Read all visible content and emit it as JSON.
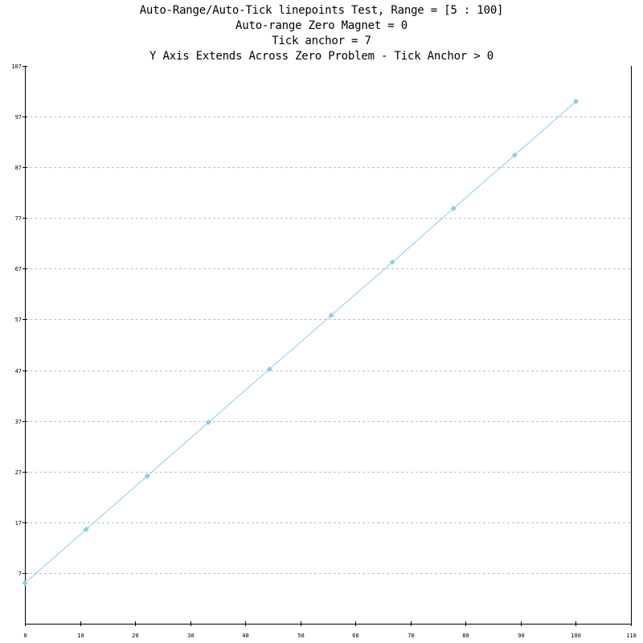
{
  "title_lines": [
    "Auto-Range/Auto-Tick linepoints Test, Range = [5 : 100]",
    "Auto-range Zero Magnet = 0",
    "Tick anchor = 7",
    "Y Axis Extends Across Zero Problem - Tick Anchor > 0"
  ],
  "chart_data": {
    "type": "line",
    "markers": "diamond",
    "color": "#87ceeb",
    "grid": "y-dashed",
    "x": [
      0,
      11.1,
      22.2,
      33.3,
      44.4,
      55.6,
      66.7,
      77.8,
      88.9,
      100
    ],
    "values": [
      5,
      15.6,
      26.1,
      36.7,
      47.2,
      57.8,
      68.3,
      78.9,
      89.4,
      100
    ],
    "xlim": [
      0,
      110
    ],
    "ylim": [
      -3,
      107
    ],
    "x_ticks": [
      0,
      10,
      20,
      30,
      40,
      50,
      60,
      70,
      80,
      90,
      100,
      110
    ],
    "y_ticks": [
      7,
      17,
      27,
      37,
      47,
      57,
      67,
      77,
      87,
      97,
      107
    ],
    "x_tick_labels": [
      "0",
      "10",
      "20",
      "30",
      "40",
      "50",
      "60",
      "70",
      "80",
      "90",
      "100",
      "110"
    ],
    "y_tick_labels": [
      "7",
      "17",
      "27",
      "37",
      "47",
      "57",
      "67",
      "77",
      "87",
      "97",
      "107"
    ]
  }
}
